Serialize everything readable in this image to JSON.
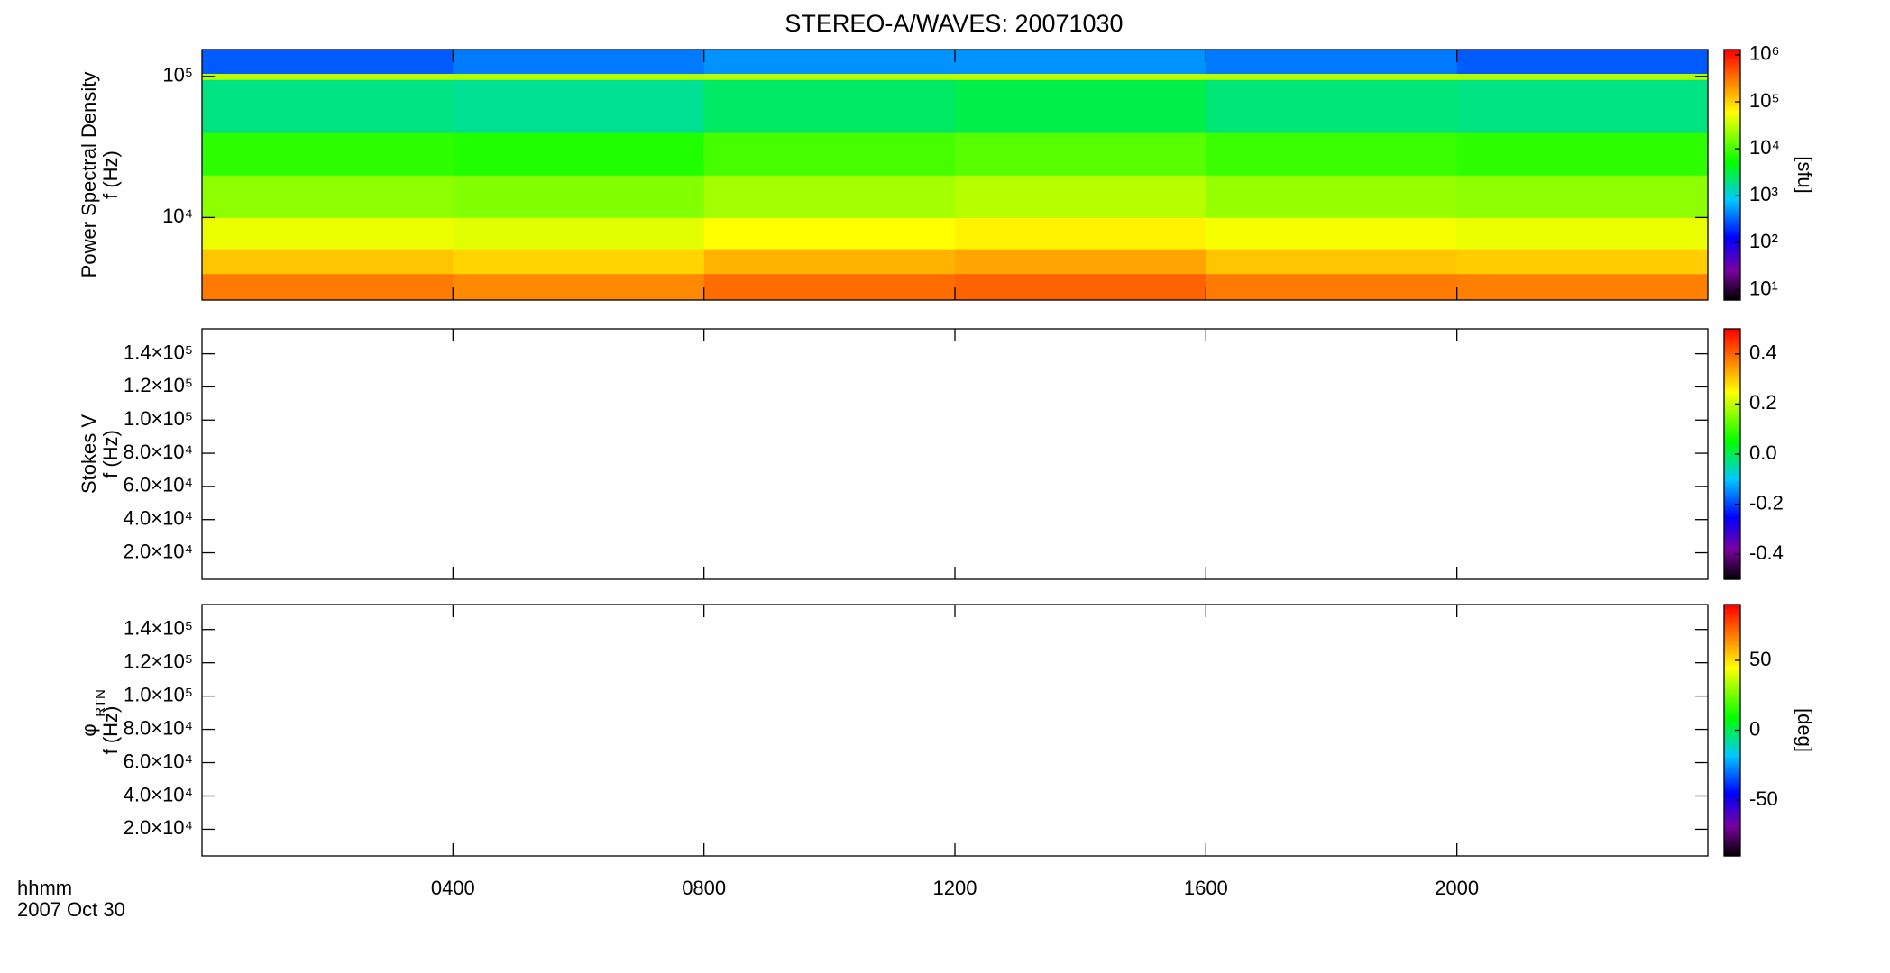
{
  "chart_data": [
    {
      "type": "heatmap",
      "title": "STEREO-A/WAVES: 20071030",
      "ylabel": [
        "Power Spectral Density",
        "f (Hz)"
      ],
      "ylog": true,
      "xlim": [
        0,
        24
      ],
      "xticks": [
        4,
        8,
        12,
        16,
        20
      ],
      "ylim": [
        2600,
        155000
      ],
      "yticks": [
        {
          "value": 10000,
          "label": "10⁴"
        },
        {
          "value": 100000,
          "label": "10⁵"
        }
      ],
      "time_edges": [
        0,
        4,
        8,
        12,
        16,
        20,
        24
      ],
      "freq_edges": [
        2600,
        4000,
        6000,
        10000,
        20000,
        40000,
        95000,
        105000,
        155000
      ],
      "z": [
        [
          300000,
          250000,
          350000,
          400000,
          300000,
          280000
        ],
        [
          120000,
          100000,
          150000,
          180000,
          120000,
          110000
        ],
        [
          50000,
          45000,
          60000,
          70000,
          55000,
          50000
        ],
        [
          20000,
          18000,
          25000,
          30000,
          22000,
          20000
        ],
        [
          8000,
          7000,
          10000,
          12000,
          9000,
          8000
        ],
        [
          2000,
          1800,
          2500,
          3000,
          2200,
          2000
        ],
        [
          30000,
          28000,
          30000,
          32000,
          30000,
          28000
        ],
        [
          300,
          400,
          500,
          500,
          400,
          300
        ]
      ],
      "colorbar": {
        "log": true,
        "lim": [
          6,
          1300000
        ],
        "ticks": [
          {
            "value": 10,
            "label": "10¹"
          },
          {
            "value": 100,
            "label": "10²"
          },
          {
            "value": 1000,
            "label": "10³"
          },
          {
            "value": 10000,
            "label": "10⁴"
          },
          {
            "value": 100000,
            "label": "10⁵"
          },
          {
            "value": 1000000,
            "label": "10⁶"
          }
        ],
        "label": "[sfu]"
      }
    },
    {
      "type": "empty",
      "ylabel": [
        "Stokes V",
        "f (Hz)"
      ],
      "xlim": [
        0,
        24
      ],
      "xticks": [
        4,
        8,
        12,
        16,
        20
      ],
      "ylim": [
        4000,
        155000
      ],
      "yticks": [
        {
          "value": 20000,
          "label": "2.0×10⁴"
        },
        {
          "value": 40000,
          "label": "4.0×10⁴"
        },
        {
          "value": 60000,
          "label": "6.0×10⁴"
        },
        {
          "value": 80000,
          "label": "8.0×10⁴"
        },
        {
          "value": 100000,
          "label": "1.0×10⁵"
        },
        {
          "value": 120000,
          "label": "1.2×10⁵"
        },
        {
          "value": 140000,
          "label": "1.4×10⁵"
        }
      ],
      "colorbar": {
        "log": false,
        "lim": [
          -0.5,
          0.5
        ],
        "ticks": [
          -0.4,
          -0.2,
          {
            "value": 0,
            "label": "0.0"
          },
          0.2,
          0.4
        ]
      }
    },
    {
      "type": "empty",
      "ylabel": [
        "φ",
        "f (Hz)"
      ],
      "ylabel_sub": "RTN",
      "xlim": [
        0,
        24
      ],
      "xticks": [
        {
          "value": 4,
          "label": "0400"
        },
        {
          "value": 8,
          "label": "0800"
        },
        {
          "value": 12,
          "label": "1200"
        },
        {
          "value": 16,
          "label": "1600"
        },
        {
          "value": 20,
          "label": "2000"
        }
      ],
      "xlabel": [
        "hhmm",
        "2007 Oct 30"
      ],
      "ylim": [
        4000,
        155000
      ],
      "yticks": [
        {
          "value": 20000,
          "label": "2.0×10⁴"
        },
        {
          "value": 40000,
          "label": "4.0×10⁴"
        },
        {
          "value": 60000,
          "label": "6.0×10⁴"
        },
        {
          "value": 80000,
          "label": "8.0×10⁴"
        },
        {
          "value": 100000,
          "label": "1.0×10⁵"
        },
        {
          "value": 120000,
          "label": "1.2×10⁵"
        },
        {
          "value": 140000,
          "label": "1.4×10⁵"
        }
      ],
      "colorbar": {
        "log": false,
        "lim": [
          -90,
          90
        ],
        "ticks": [
          -50,
          0,
          50
        ],
        "label": "[deg]"
      }
    }
  ]
}
